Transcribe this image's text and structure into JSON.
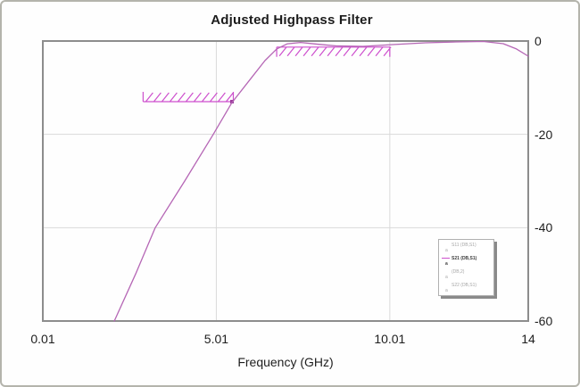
{
  "window": {
    "title": "Adjusted Highpass Filter"
  },
  "chart_data": {
    "type": "line",
    "title": "Adjusted Highpass Filter",
    "xlabel": "Frequency (GHz)",
    "ylabel": "",
    "x_range": [
      0.01,
      14
    ],
    "y_range": [
      -60,
      0
    ],
    "grid": true,
    "x_ticks": [
      {
        "value": 0.01,
        "label": "0.01"
      },
      {
        "value": 5.01,
        "label": "5.01"
      },
      {
        "value": 10.01,
        "label": "10.01"
      },
      {
        "value": 14,
        "label": "14"
      }
    ],
    "y_ticks": [
      {
        "value": 0,
        "label": "0"
      },
      {
        "value": -20,
        "label": "-20"
      },
      {
        "value": -40,
        "label": "-40"
      },
      {
        "value": -60,
        "label": "-60"
      }
    ],
    "series": [
      {
        "name": "S21 (DB,S1)",
        "color": "#b566b5",
        "x": [
          2.07,
          2.68,
          3.25,
          4.1,
          4.9,
          5.46,
          6.03,
          6.41,
          6.75,
          7.06,
          7.44,
          7.96,
          8.47,
          9.24,
          10.09,
          11.04,
          11.94,
          12.71,
          13.28,
          13.66,
          14.0
        ],
        "y": [
          -60.0,
          -50.0,
          -40.0,
          -30.0,
          -20.3,
          -13.2,
          -7.8,
          -4.2,
          -1.7,
          -0.6,
          -0.3,
          -0.7,
          -1.05,
          -1.15,
          -0.76,
          -0.38,
          -0.19,
          -0.1,
          -0.57,
          -1.7,
          -3.25
        ]
      }
    ],
    "goals": [
      {
        "name": "stopband-goal",
        "x1": 2.9,
        "x2": 5.5,
        "level": -13,
        "hatch": "above",
        "color": "#cd4fcd",
        "corner_marker": true
      },
      {
        "name": "passband-goal",
        "x1": 6.75,
        "x2": 10.01,
        "level": -1.3,
        "hatch": "below",
        "color": "#cd4fcd",
        "corner_marker": false
      }
    ],
    "legend": {
      "position": "bottom-right",
      "entries": [
        {
          "label": "S11 (DB,S1)",
          "sub": "a",
          "swatch": false,
          "active": false
        },
        {
          "label": "S21 (DB,S1)",
          "sub": "a",
          "swatch": true,
          "active": true
        },
        {
          "label": "(DB,2)",
          "sub": "a",
          "swatch": false,
          "active": false
        },
        {
          "label": "S22 (DB,S1)",
          "sub": "a",
          "swatch": false,
          "active": false
        }
      ]
    }
  },
  "colors": {
    "trace": "#b566b5",
    "goal": "#cd4fcd",
    "goal_marker": "#9b3a9b",
    "grid": "#d9d9d9",
    "frame": "#8d8d8d",
    "outer_border": "#b4b4ac"
  }
}
